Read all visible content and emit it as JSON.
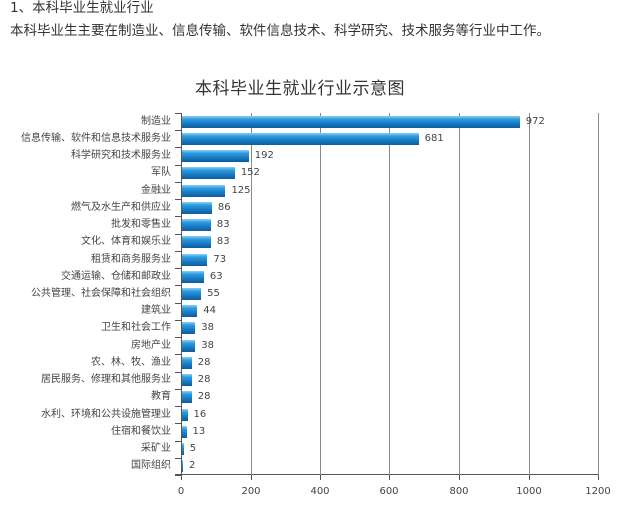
{
  "article": {
    "heading": "1、本科毕业生就业行业",
    "summary": "本科毕业生主要在制造业、信息传输、软件信息技术、科学研究、技术服务等行业中工作。"
  },
  "chart_data": {
    "type": "bar",
    "orientation": "horizontal",
    "title": "本科毕业生就业行业示意图",
    "xlabel": "",
    "ylabel": "",
    "xlim": [
      0,
      1200
    ],
    "xticks": [
      0,
      200,
      400,
      600,
      800,
      1000,
      1200
    ],
    "grid": true,
    "legend": null,
    "bar_color": "#1a7cc4",
    "categories": [
      "制造业",
      "信息传输、软件和信息技术服务业",
      "科学研究和技术服务业",
      "军队",
      "金融业",
      "燃气及水生产和供应业",
      "批发和零售业",
      "文化、体育和娱乐业",
      "租赁和商务服务业",
      "交通运输、仓储和邮政业",
      "公共管理、社会保障和社会组织",
      "建筑业",
      "卫生和社会工作",
      "房地产业",
      "农、林、牧、渔业",
      "居民服务、修理和其他服务业",
      "教育",
      "水利、环境和公共设施管理业",
      "住宿和餐饮业",
      "采矿业",
      "国际组织"
    ],
    "values": [
      972,
      681,
      192,
      152,
      125,
      86,
      83,
      83,
      73,
      63,
      55,
      44,
      38,
      38,
      28,
      28,
      28,
      16,
      13,
      5,
      2
    ]
  }
}
